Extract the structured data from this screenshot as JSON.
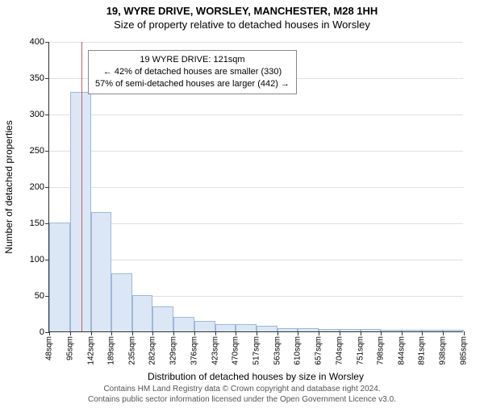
{
  "title_main": "19, WYRE DRIVE, WORSLEY, MANCHESTER, M28 1HH",
  "title_sub": "Size of property relative to detached houses in Worsley",
  "chart": {
    "type": "histogram",
    "background_color": "#ffffff",
    "grid_color": "#e0e0e0",
    "axis_color": "#333333",
    "bar_fill": "#dbe7f5",
    "bar_stroke": "#9db8d8",
    "marker_color": "#c06060",
    "infobox_border": "#888888",
    "ylim": [
      0,
      400
    ],
    "ytick_step": 50,
    "yticks": [
      0,
      50,
      100,
      150,
      200,
      250,
      300,
      350,
      400
    ],
    "xlabel": "Distribution of detached houses by size in Worsley",
    "ylabel": "Number of detached properties",
    "label_fontsize": 12,
    "tick_fontsize": 11,
    "x_start": 48,
    "x_bin_width": 47,
    "x_ticks": [
      48,
      95,
      142,
      189,
      235,
      282,
      329,
      376,
      423,
      470,
      517,
      563,
      610,
      657,
      704,
      751,
      798,
      844,
      891,
      938,
      985
    ],
    "x_tick_suffix": "sqm",
    "values": [
      150,
      330,
      165,
      80,
      50,
      35,
      20,
      15,
      10,
      10,
      8,
      5,
      5,
      3,
      3,
      3,
      2,
      2,
      2,
      2
    ],
    "marker_x": 121,
    "infobox": {
      "line1": "19 WYRE DRIVE: 121sqm",
      "line2": "← 42% of detached houses are smaller (330)",
      "line3": "57% of semi-detached houses are larger (442) →"
    }
  },
  "footer": {
    "line1": "Contains HM Land Registry data © Crown copyright and database right 2024.",
    "line2": "Contains public sector information licensed under the Open Government Licence v3.0."
  }
}
